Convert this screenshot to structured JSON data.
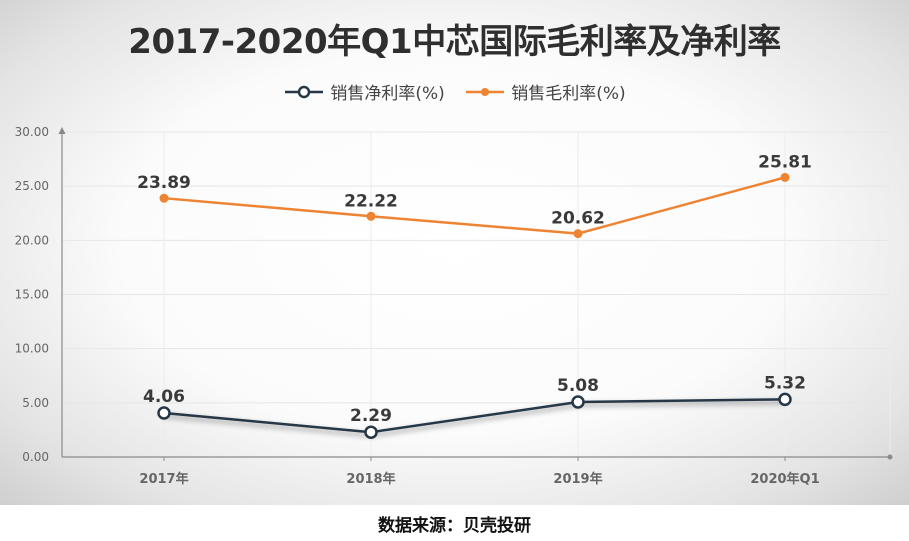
{
  "chart_data": {
    "type": "line",
    "title": "2017-2020年Q1中芯国际毛利率及净利率",
    "categories": [
      "2017年",
      "2018年",
      "2019年",
      "2020年Q1"
    ],
    "series": [
      {
        "name": "销售净利率(%)",
        "values": [
          4.06,
          2.29,
          5.08,
          5.32
        ],
        "labels": [
          "4.06",
          "2.29",
          "5.08",
          "5.32"
        ],
        "color": "#253746"
      },
      {
        "name": "销售毛利率(%)",
        "values": [
          23.89,
          22.22,
          20.62,
          25.81
        ],
        "labels": [
          "23.89",
          "22.22",
          "20.62",
          "25.81"
        ],
        "color": "#ee8332"
      }
    ],
    "y_ticks": [
      "0.00",
      "5.00",
      "10.00",
      "15.00",
      "20.00",
      "25.00",
      "30.00"
    ],
    "ylim": [
      0,
      30
    ],
    "xlabel": "",
    "ylabel": "",
    "grid": true,
    "legend_position": "top-center"
  },
  "source_note": "数据来源：贝壳投研"
}
